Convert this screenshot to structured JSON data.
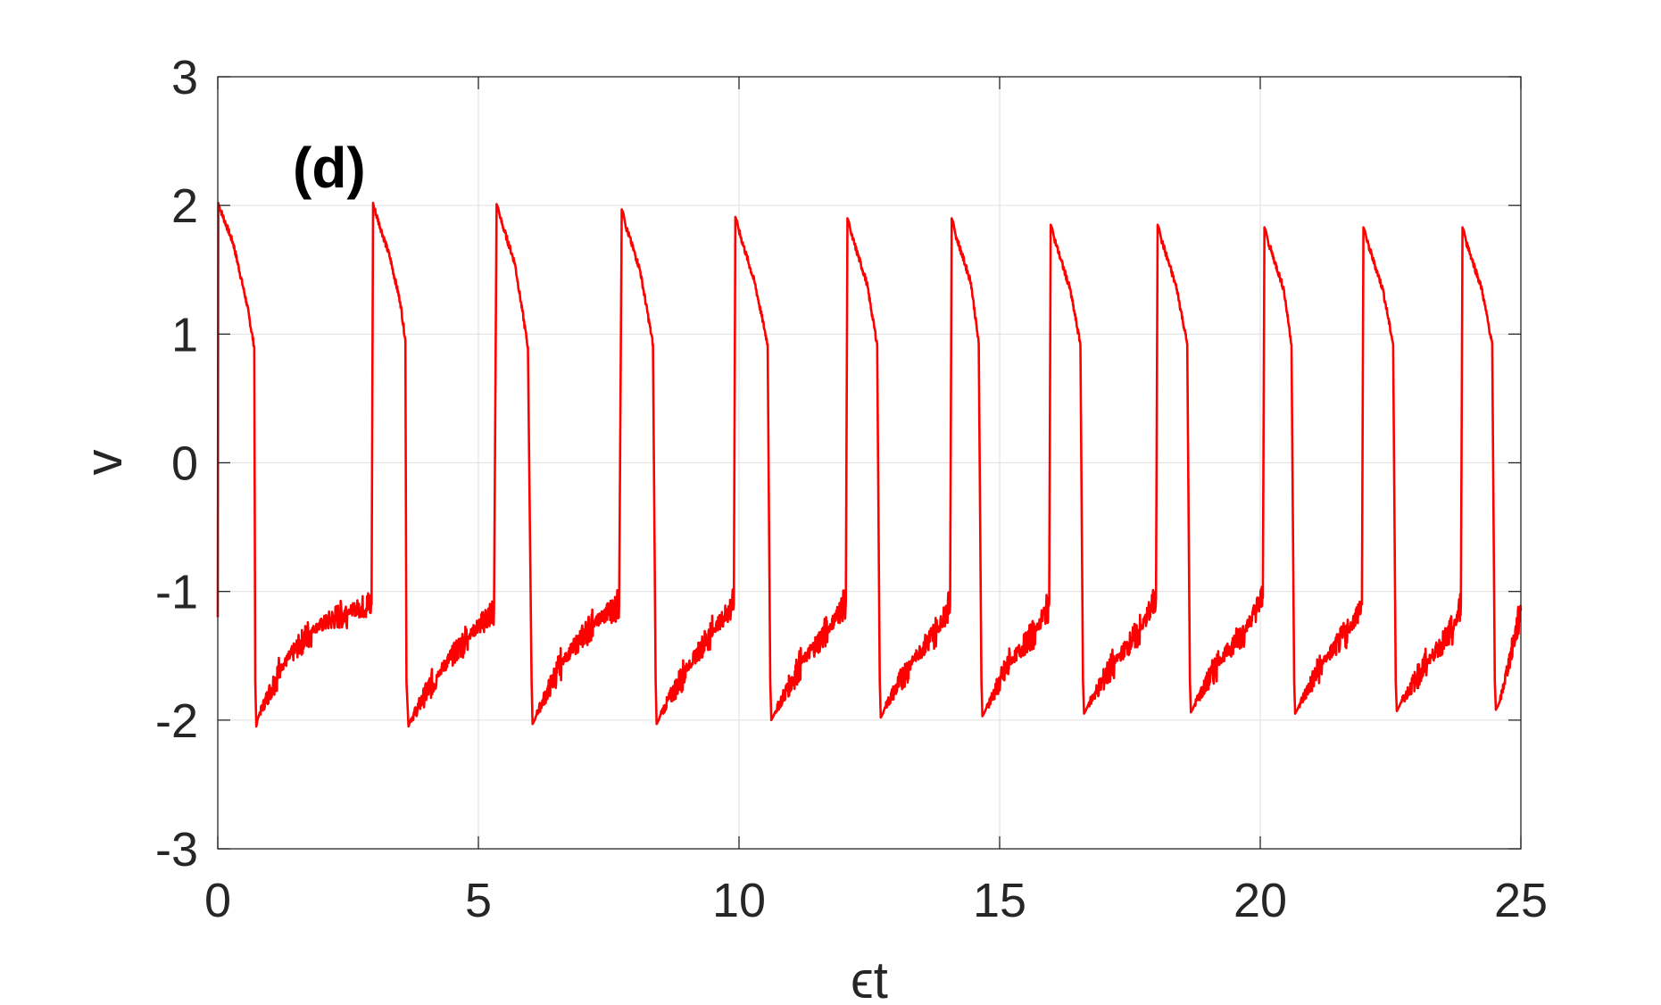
{
  "chart_data": {
    "type": "line",
    "panel_label": "(d)",
    "xlabel": "ϵt",
    "ylabel": "v",
    "xlim": [
      0,
      25
    ],
    "ylim": [
      -3,
      3
    ],
    "xticks": [
      0,
      5,
      10,
      15,
      20,
      25
    ],
    "yticks": [
      -3,
      -2,
      -1,
      0,
      1,
      2,
      3
    ],
    "xtick_labels": [
      "0",
      "5",
      "10",
      "15",
      "20",
      "25"
    ],
    "ytick_labels": [
      "-3",
      "-2",
      "-1",
      "0",
      "1",
      "2",
      "3"
    ],
    "grid": true,
    "series": [
      {
        "color": "#ff0000",
        "style": "noisy relaxation oscillation",
        "x": [
          0.0,
          0.01,
          0.02,
          0.3,
          0.55,
          0.7,
          0.72,
          0.74,
          0.76,
          0.8,
          1.2,
          1.8,
          2.5,
          2.95,
          2.98,
          3.0,
          3.3,
          3.5,
          3.6,
          3.62,
          3.66,
          3.7,
          4.2,
          4.8,
          5.3,
          5.35,
          5.38,
          5.42,
          5.7,
          5.95,
          6.02,
          6.04,
          6.08,
          6.12,
          6.6,
          7.2,
          7.7,
          7.75,
          7.78,
          7.82,
          8.1,
          8.35,
          8.4,
          8.42,
          8.46,
          8.5,
          9.0,
          9.5,
          9.9,
          9.93,
          9.96,
          10.0,
          10.3,
          10.55,
          10.6,
          10.62,
          10.66,
          10.7,
          11.2,
          11.7,
          12.05,
          12.08,
          12.11,
          12.15,
          12.45,
          12.65,
          12.7,
          12.72,
          12.76,
          12.8,
          13.3,
          13.8,
          14.05,
          14.08,
          14.11,
          14.15,
          14.45,
          14.6,
          14.65,
          14.67,
          14.71,
          14.75,
          15.2,
          15.7,
          15.95,
          15.98,
          16.01,
          16.05,
          16.35,
          16.55,
          16.6,
          16.62,
          16.66,
          16.7,
          17.2,
          17.7,
          18.0,
          18.03,
          18.06,
          18.1,
          18.4,
          18.6,
          18.65,
          18.67,
          18.71,
          18.75,
          19.2,
          19.7,
          20.05,
          20.08,
          20.11,
          20.15,
          20.45,
          20.6,
          20.65,
          20.67,
          20.71,
          20.75,
          21.2,
          21.7,
          21.95,
          21.98,
          22.01,
          22.05,
          22.35,
          22.55,
          22.6,
          22.62,
          22.66,
          22.7,
          23.2,
          23.7,
          23.85,
          23.88,
          23.91,
          23.95,
          24.25,
          24.45,
          24.5,
          24.52,
          24.56,
          24.6,
          25.0
        ],
        "y": [
          -1.2,
          2.02,
          2.0,
          1.7,
          1.25,
          0.9,
          -1.7,
          -2.05,
          -2.0,
          -1.95,
          -1.6,
          -1.3,
          -1.15,
          -1.1,
          2.02,
          1.98,
          1.6,
          1.25,
          0.95,
          -1.7,
          -2.05,
          -2.0,
          -1.65,
          -1.35,
          -1.15,
          2.01,
          1.98,
          1.9,
          1.55,
          0.9,
          -1.7,
          -2.03,
          -2.0,
          -1.95,
          -1.55,
          -1.25,
          -1.1,
          1.97,
          1.94,
          1.85,
          1.5,
          0.92,
          -1.7,
          -2.03,
          -2.0,
          -1.95,
          -1.6,
          -1.3,
          -1.1,
          1.91,
          1.88,
          1.8,
          1.4,
          0.92,
          -1.7,
          -2.0,
          -1.97,
          -1.93,
          -1.55,
          -1.3,
          -1.08,
          1.9,
          1.87,
          1.78,
          1.4,
          0.92,
          -1.7,
          -1.98,
          -1.95,
          -1.9,
          -1.55,
          -1.3,
          -1.1,
          1.9,
          1.87,
          1.78,
          1.4,
          0.92,
          -1.7,
          -1.97,
          -1.94,
          -1.9,
          -1.55,
          -1.3,
          -1.1,
          1.85,
          1.82,
          1.74,
          1.35,
          0.92,
          -1.7,
          -1.95,
          -1.92,
          -1.88,
          -1.55,
          -1.3,
          -1.05,
          1.85,
          1.82,
          1.74,
          1.35,
          0.92,
          -1.7,
          -1.94,
          -1.91,
          -1.87,
          -1.55,
          -1.3,
          -1.05,
          1.83,
          1.8,
          1.72,
          1.35,
          0.92,
          -1.7,
          -1.95,
          -1.92,
          -1.88,
          -1.55,
          -1.3,
          -1.1,
          1.83,
          1.8,
          1.72,
          1.35,
          0.92,
          -1.7,
          -1.93,
          -1.9,
          -1.86,
          -1.55,
          -1.3,
          -1.1,
          1.83,
          1.8,
          1.72,
          1.35,
          0.92,
          -1.7,
          -1.92,
          -1.89,
          -1.85,
          -1.15
        ]
      }
    ]
  }
}
